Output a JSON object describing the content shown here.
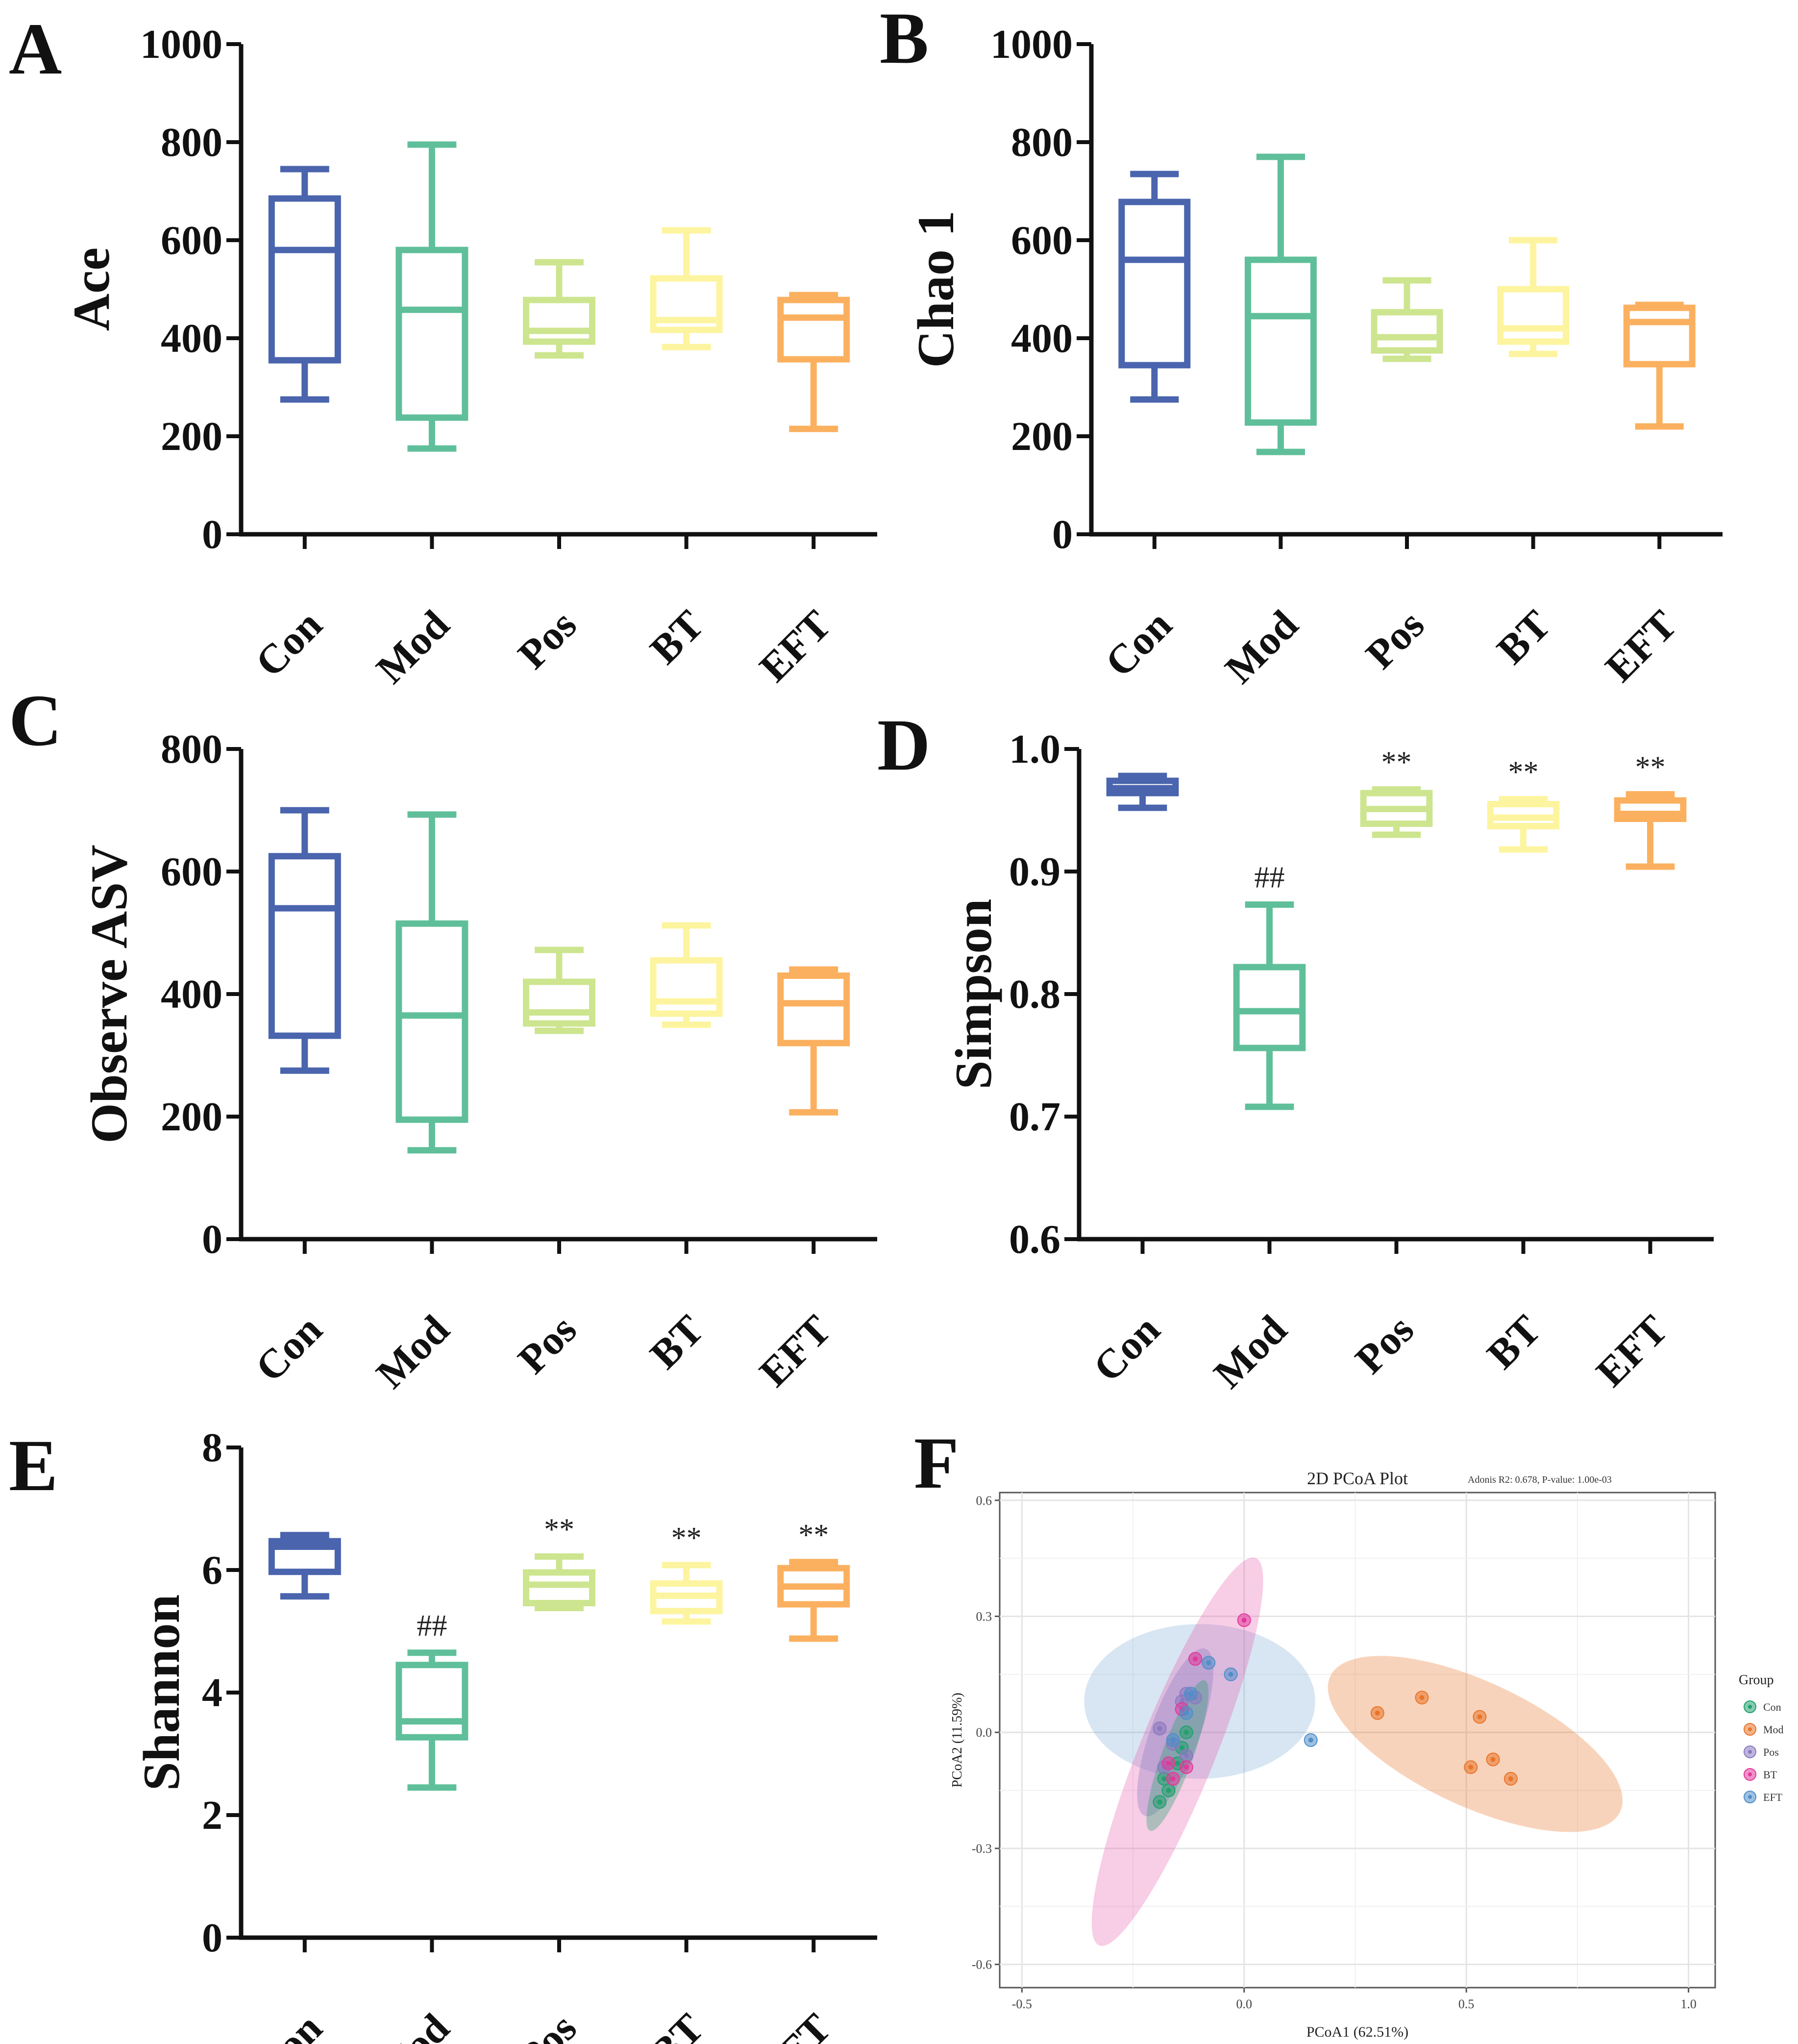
{
  "colors": {
    "Con": "#4a64ad",
    "Mod": "#5fbf9a",
    "Pos": "#cde58f",
    "BT": "#fdf49f",
    "EFT": "#fbb05f",
    "pca_Con": "#22a06e",
    "pca_Mod": "#e8752a",
    "pca_Pos": "#8a79c0",
    "pca_BT": "#e2389a",
    "pca_EFT": "#4f8ec9"
  },
  "chart_data": [
    {
      "panel": "A",
      "type": "box",
      "ylabel": "Ace",
      "ylim": [
        0,
        1000
      ],
      "yticks": [
        "0",
        "200",
        "400",
        "600",
        "800",
        "1000"
      ],
      "categories": [
        "Con",
        "Mod",
        "Pos",
        "BT",
        "EFT"
      ],
      "boxes": [
        {
          "min": 275,
          "q1": 355,
          "median": 580,
          "q3": 685,
          "max": 745
        },
        {
          "min": 175,
          "q1": 238,
          "median": 458,
          "q3": 580,
          "max": 795
        },
        {
          "min": 365,
          "q1": 393,
          "median": 415,
          "q3": 478,
          "max": 555
        },
        {
          "min": 382,
          "q1": 417,
          "median": 437,
          "q3": 522,
          "max": 620
        },
        {
          "min": 215,
          "q1": 357,
          "median": 442,
          "q3": 478,
          "max": 488
        }
      ],
      "annotations": [
        "",
        "",
        "",
        "",
        ""
      ]
    },
    {
      "panel": "B",
      "type": "box",
      "ylabel": "Chao 1",
      "ylim": [
        0,
        1000
      ],
      "yticks": [
        "0",
        "200",
        "400",
        "600",
        "800",
        "1000"
      ],
      "categories": [
        "Con",
        "Mod",
        "Pos",
        "BT",
        "EFT"
      ],
      "boxes": [
        {
          "min": 275,
          "q1": 345,
          "median": 560,
          "q3": 678,
          "max": 735
        },
        {
          "min": 168,
          "q1": 228,
          "median": 445,
          "q3": 560,
          "max": 770
        },
        {
          "min": 358,
          "q1": 375,
          "median": 402,
          "q3": 453,
          "max": 518
        },
        {
          "min": 368,
          "q1": 393,
          "median": 420,
          "q3": 500,
          "max": 600
        },
        {
          "min": 220,
          "q1": 347,
          "median": 433,
          "q3": 462,
          "max": 468
        }
      ],
      "annotations": [
        "",
        "",
        "",
        "",
        ""
      ]
    },
    {
      "panel": "C",
      "type": "box",
      "ylabel": "Observe ASV",
      "ylim": [
        0,
        800
      ],
      "yticks": [
        "0",
        "200",
        "400",
        "600",
        "800"
      ],
      "categories": [
        "Con",
        "Mod",
        "Pos",
        "BT",
        "EFT"
      ],
      "boxes": [
        {
          "min": 275,
          "q1": 332,
          "median": 540,
          "q3": 625,
          "max": 700
        },
        {
          "min": 145,
          "q1": 195,
          "median": 365,
          "q3": 515,
          "max": 693
        },
        {
          "min": 340,
          "q1": 352,
          "median": 370,
          "q3": 420,
          "max": 472
        },
        {
          "min": 350,
          "q1": 368,
          "median": 388,
          "q3": 455,
          "max": 512
        },
        {
          "min": 207,
          "q1": 320,
          "median": 385,
          "q3": 430,
          "max": 440
        }
      ],
      "annotations": [
        "",
        "",
        "",
        "",
        ""
      ]
    },
    {
      "panel": "D",
      "type": "box",
      "ylabel": "Simpson",
      "ylim": [
        0.6,
        1.0
      ],
      "yticks": [
        "0.6",
        "0.7",
        "0.8",
        "0.9",
        "1.0"
      ],
      "categories": [
        "Con",
        "Mod",
        "Pos",
        "BT",
        "EFT"
      ],
      "boxes": [
        {
          "min": 0.952,
          "q1": 0.964,
          "median": 0.968,
          "q3": 0.974,
          "max": 0.978
        },
        {
          "min": 0.708,
          "q1": 0.756,
          "median": 0.786,
          "q3": 0.822,
          "max": 0.873
        },
        {
          "min": 0.93,
          "q1": 0.939,
          "median": 0.951,
          "q3": 0.964,
          "max": 0.967
        },
        {
          "min": 0.918,
          "q1": 0.937,
          "median": 0.944,
          "q3": 0.955,
          "max": 0.959
        },
        {
          "min": 0.904,
          "q1": 0.943,
          "median": 0.947,
          "q3": 0.958,
          "max": 0.963
        }
      ],
      "annotations": [
        "",
        "##",
        "**",
        "**",
        "**"
      ]
    },
    {
      "panel": "E",
      "type": "box",
      "ylabel": "Shannon",
      "ylim": [
        0,
        8
      ],
      "yticks": [
        "0",
        "2",
        "4",
        "6",
        "8"
      ],
      "categories": [
        "Con",
        "Mod",
        "Pos",
        "BT",
        "EFT"
      ],
      "boxes": [
        {
          "min": 5.57,
          "q1": 5.97,
          "median": 6.38,
          "q3": 6.47,
          "max": 6.57
        },
        {
          "min": 2.45,
          "q1": 3.27,
          "median": 3.53,
          "q3": 4.45,
          "max": 4.65
        },
        {
          "min": 5.38,
          "q1": 5.46,
          "median": 5.76,
          "q3": 5.96,
          "max": 6.22
        },
        {
          "min": 5.16,
          "q1": 5.33,
          "median": 5.58,
          "q3": 5.78,
          "max": 6.08
        },
        {
          "min": 4.88,
          "q1": 5.44,
          "median": 5.73,
          "q3": 6.03,
          "max": 6.13
        }
      ],
      "annotations": [
        "",
        "##",
        "**",
        "**",
        "**"
      ]
    },
    {
      "panel": "F",
      "type": "scatter",
      "title": "2D PCoA Plot",
      "subtitle": "Adonis R2: 0.678, P-value: 1.00e-03",
      "xlabel": "PCoA1 (62.51%)",
      "ylabel": "PCoA2 (11.59%)",
      "xlim": [
        -0.55,
        1.06
      ],
      "ylim": [
        -0.66,
        0.62
      ],
      "xticks": [
        -0.5,
        0.0,
        0.5,
        1.0
      ],
      "xtick_labels": [
        "-0.5",
        "0.0",
        "0.5",
        "1.0"
      ],
      "yticks": [
        -0.6,
        -0.3,
        0.0,
        0.3,
        0.6
      ],
      "ytick_labels": [
        "-0.6",
        "-0.3",
        "0.0",
        "0.3",
        "0.6"
      ],
      "legend_title": "Group",
      "legend_position": "right",
      "series": [
        {
          "name": "Con",
          "points": [
            [
              -0.13,
              0.0
            ],
            [
              -0.14,
              -0.04
            ],
            [
              -0.15,
              -0.08
            ],
            [
              -0.18,
              -0.12
            ],
            [
              -0.17,
              -0.15
            ],
            [
              -0.19,
              -0.18
            ]
          ],
          "ellipse": {
            "cx": -0.15,
            "cy": -0.06,
            "rx": 0.18,
            "ry": 0.035,
            "angle_deg": 70
          }
        },
        {
          "name": "Mod",
          "points": [
            [
              0.3,
              0.05
            ],
            [
              0.4,
              0.09
            ],
            [
              0.53,
              0.04
            ],
            [
              0.56,
              -0.07
            ],
            [
              0.51,
              -0.09
            ],
            [
              0.6,
              -0.12
            ]
          ],
          "ellipse": {
            "cx": 0.52,
            "cy": -0.03,
            "rx": 0.36,
            "ry": 0.14,
            "angle_deg": -25
          }
        },
        {
          "name": "Pos",
          "points": [
            [
              -0.13,
              0.1
            ],
            [
              -0.11,
              0.09
            ],
            [
              -0.14,
              0.08
            ],
            [
              -0.19,
              0.01
            ],
            [
              -0.16,
              -0.03
            ],
            [
              -0.18,
              -0.09
            ],
            [
              -0.13,
              -0.06
            ]
          ],
          "ellipse": {
            "cx": -0.155,
            "cy": 0.0,
            "rx": 0.2,
            "ry": 0.055,
            "angle_deg": 70
          }
        },
        {
          "name": "BT",
          "points": [
            [
              0.0,
              0.29
            ],
            [
              -0.11,
              0.19
            ],
            [
              -0.13,
              -0.09
            ],
            [
              -0.16,
              -0.12
            ],
            [
              -0.17,
              -0.08
            ],
            [
              -0.14,
              0.06
            ]
          ],
          "ellipse": {
            "cx": -0.15,
            "cy": -0.05,
            "rx": 0.47,
            "ry": 0.085,
            "angle_deg": 68
          }
        },
        {
          "name": "EFT",
          "points": [
            [
              -0.08,
              0.18
            ],
            [
              -0.03,
              0.15
            ],
            [
              0.15,
              -0.02
            ],
            [
              -0.12,
              0.1
            ],
            [
              -0.13,
              0.05
            ],
            [
              -0.16,
              -0.02
            ]
          ],
          "ellipse": {
            "cx": -0.1,
            "cy": 0.08,
            "rx": 0.26,
            "ry": 0.2,
            "angle_deg": 0
          }
        }
      ]
    }
  ]
}
